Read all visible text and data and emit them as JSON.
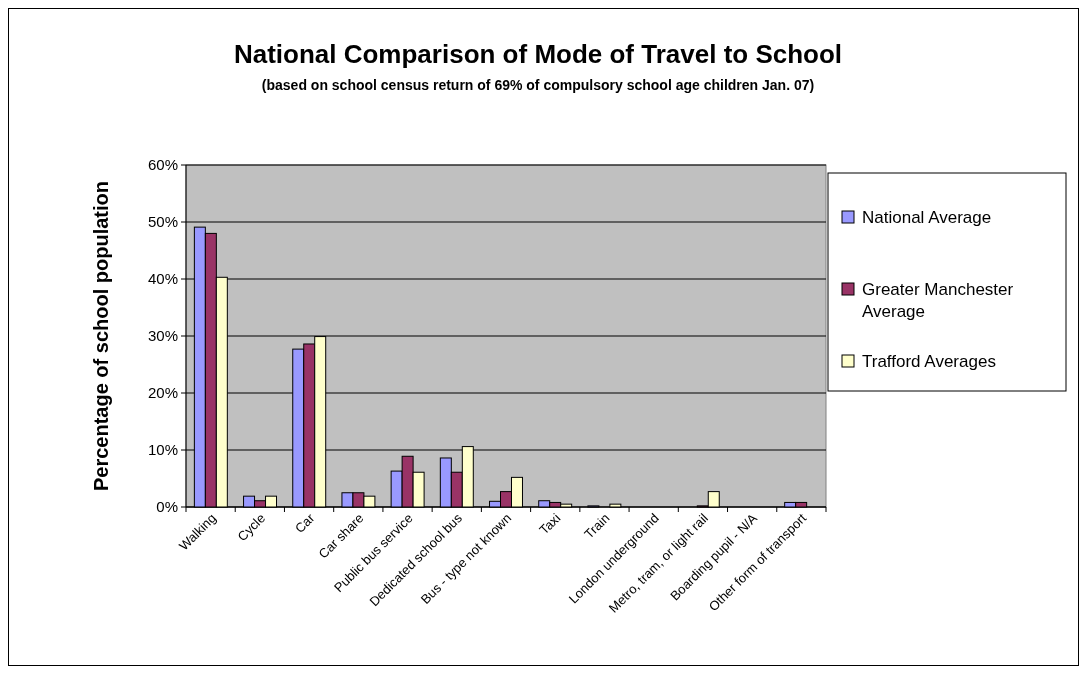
{
  "chart_data": {
    "type": "bar",
    "title": "National Comparison of Mode of Travel to School",
    "subtitle": "(based on school census return of 69% of compulsory school age children Jan. 07)",
    "ylabel": "Percentage of school population",
    "categories": [
      "Walking",
      "Cycle",
      "Car",
      "Car share",
      "Public bus service",
      "Dedicated school bus",
      "Bus - type not known",
      "Taxi",
      "Train",
      "London underground",
      "Metro, tram, or light rail",
      "Boarding pupil - N/A",
      "Other form of transport"
    ],
    "series": [
      {
        "name": "National Average",
        "color": "#9999ff",
        "values": [
          49.1,
          1.9,
          27.7,
          2.5,
          6.3,
          8.6,
          1.0,
          1.1,
          0.2,
          0,
          0,
          0,
          0.8
        ]
      },
      {
        "name": "Greater Manchester Average",
        "color": "#993366",
        "values": [
          48.0,
          1.1,
          28.6,
          2.5,
          8.9,
          6.1,
          2.7,
          0.8,
          0,
          0,
          0.2,
          0,
          0.8
        ]
      },
      {
        "name": "Trafford Averages",
        "color": "#ffffcc",
        "values": [
          40.3,
          1.9,
          29.9,
          1.9,
          6.1,
          10.6,
          5.2,
          0.5,
          0.5,
          0,
          2.7,
          0,
          0
        ]
      }
    ],
    "ylim": [
      0,
      60
    ],
    "yticks": [
      {
        "value": 0,
        "label": "0%"
      },
      {
        "value": 10,
        "label": "10%"
      },
      {
        "value": 20,
        "label": "20%"
      },
      {
        "value": 30,
        "label": "30%"
      },
      {
        "value": 40,
        "label": "40%"
      },
      {
        "value": 50,
        "label": "50%"
      },
      {
        "value": 60,
        "label": "60%"
      }
    ],
    "grid": "y",
    "legend": "right"
  }
}
